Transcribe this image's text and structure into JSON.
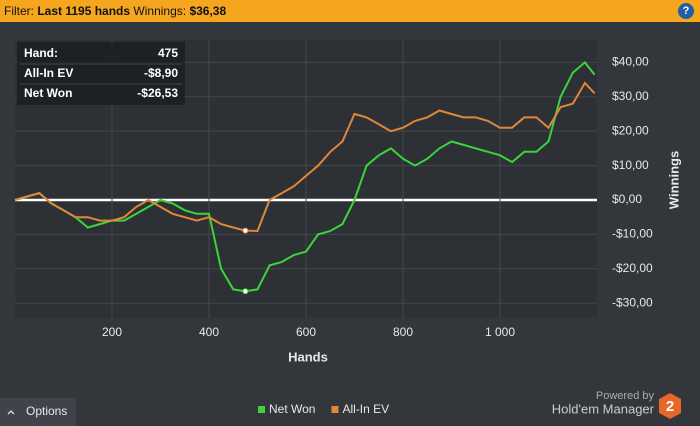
{
  "header": {
    "filter_label": "Filter:",
    "filter_value": "Last 1195 hands",
    "winnings_label": "Winnings:",
    "winnings_value": "$36,38",
    "help": "?"
  },
  "footer": {
    "options": "Options",
    "powered_by": "Powered by",
    "brand": "Hold'em Manager",
    "brand_version": "2"
  },
  "chart_data": {
    "type": "line",
    "x_label": "Hands",
    "y_label": "Winnings",
    "x": [
      0,
      25,
      50,
      75,
      100,
      125,
      150,
      175,
      200,
      225,
      250,
      275,
      300,
      325,
      350,
      375,
      400,
      425,
      450,
      475,
      500,
      525,
      550,
      575,
      600,
      625,
      650,
      675,
      700,
      725,
      750,
      775,
      800,
      825,
      850,
      875,
      900,
      925,
      950,
      975,
      1000,
      1025,
      1050,
      1075,
      1100,
      1125,
      1150,
      1175,
      1195
    ],
    "series": [
      {
        "name": "Net Won",
        "color": "#3cd43c",
        "values": [
          0,
          1,
          2,
          -1,
          -3,
          -5,
          -8,
          -7,
          -6,
          -6,
          -4,
          -2,
          0,
          -1,
          -3,
          -4,
          -4,
          -20,
          -26,
          -26.53,
          -26,
          -19,
          -18,
          -16,
          -15,
          -10,
          -9,
          -7,
          0,
          10,
          13,
          15,
          12,
          10,
          12,
          15,
          17,
          16,
          15,
          14,
          13,
          11,
          14,
          14,
          17,
          30,
          37,
          40,
          36.38
        ]
      },
      {
        "name": "All-In EV",
        "color": "#e0883a",
        "values": [
          0,
          1,
          2,
          -1,
          -3,
          -5,
          -5,
          -6,
          -6,
          -5,
          -2,
          0,
          -2,
          -4,
          -5,
          -6,
          -5,
          -7,
          -8,
          -8.9,
          -9,
          0,
          2,
          4,
          7,
          10,
          14,
          17,
          25,
          24,
          22,
          20,
          21,
          23,
          24,
          26,
          25,
          24,
          24,
          23,
          21,
          21,
          24,
          24,
          21,
          27,
          28,
          34,
          31
        ]
      }
    ],
    "xlim": [
      0,
      1200
    ],
    "ylim": [
      -34.3,
      46.5
    ],
    "xticks": [
      200,
      400,
      600,
      800,
      {
        "value": 1000,
        "label": "1 000"
      }
    ],
    "yticks": [
      {
        "value": 40,
        "label": "$40,00"
      },
      {
        "value": 30,
        "label": "$30,00"
      },
      {
        "value": 20,
        "label": "$20,00"
      },
      {
        "value": 10,
        "label": "$10,00"
      },
      {
        "value": 0,
        "label": "$0,00"
      },
      {
        "value": -10,
        "label": "-$10,00"
      },
      {
        "value": -20,
        "label": "-$20,00"
      },
      {
        "value": -30,
        "label": "-$30,00"
      }
    ],
    "grid": true,
    "tooltip": {
      "hand_label": "Hand:",
      "hand": 475,
      "rows": [
        {
          "label": "All-In EV",
          "value": "-$8,90"
        },
        {
          "label": "Net Won",
          "value": "-$26,53"
        }
      ]
    }
  }
}
